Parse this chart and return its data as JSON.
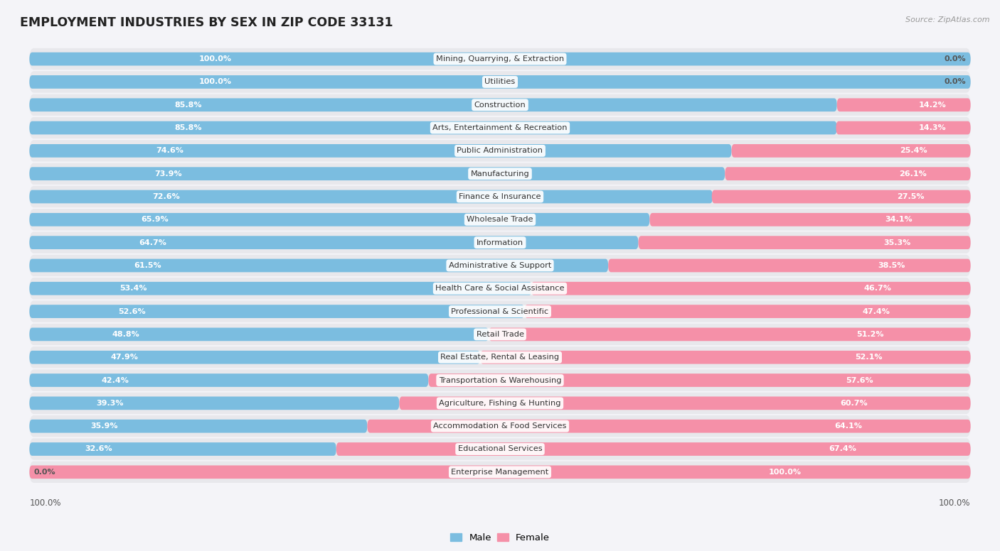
{
  "title": "EMPLOYMENT INDUSTRIES BY SEX IN ZIP CODE 33131",
  "source": "Source: ZipAtlas.com",
  "male_color": "#7bbde0",
  "female_color": "#f590a8",
  "bg_bar_color": "#e8e8ec",
  "row_bg_color": "#f0f0f5",
  "white_color": "#ffffff",
  "label_bg_color": "#ffffff",
  "background_color": "#f4f4f8",
  "categories": [
    "Mining, Quarrying, & Extraction",
    "Utilities",
    "Construction",
    "Arts, Entertainment & Recreation",
    "Public Administration",
    "Manufacturing",
    "Finance & Insurance",
    "Wholesale Trade",
    "Information",
    "Administrative & Support",
    "Health Care & Social Assistance",
    "Professional & Scientific",
    "Retail Trade",
    "Real Estate, Rental & Leasing",
    "Transportation & Warehousing",
    "Agriculture, Fishing & Hunting",
    "Accommodation & Food Services",
    "Educational Services",
    "Enterprise Management"
  ],
  "male_pct": [
    100.0,
    100.0,
    85.8,
    85.8,
    74.6,
    73.9,
    72.6,
    65.9,
    64.7,
    61.5,
    53.4,
    52.6,
    48.8,
    47.9,
    42.4,
    39.3,
    35.9,
    32.6,
    0.0
  ],
  "female_pct": [
    0.0,
    0.0,
    14.2,
    14.3,
    25.4,
    26.1,
    27.5,
    34.1,
    35.3,
    38.5,
    46.7,
    47.4,
    51.2,
    52.1,
    57.6,
    60.7,
    64.1,
    67.4,
    100.0
  ]
}
